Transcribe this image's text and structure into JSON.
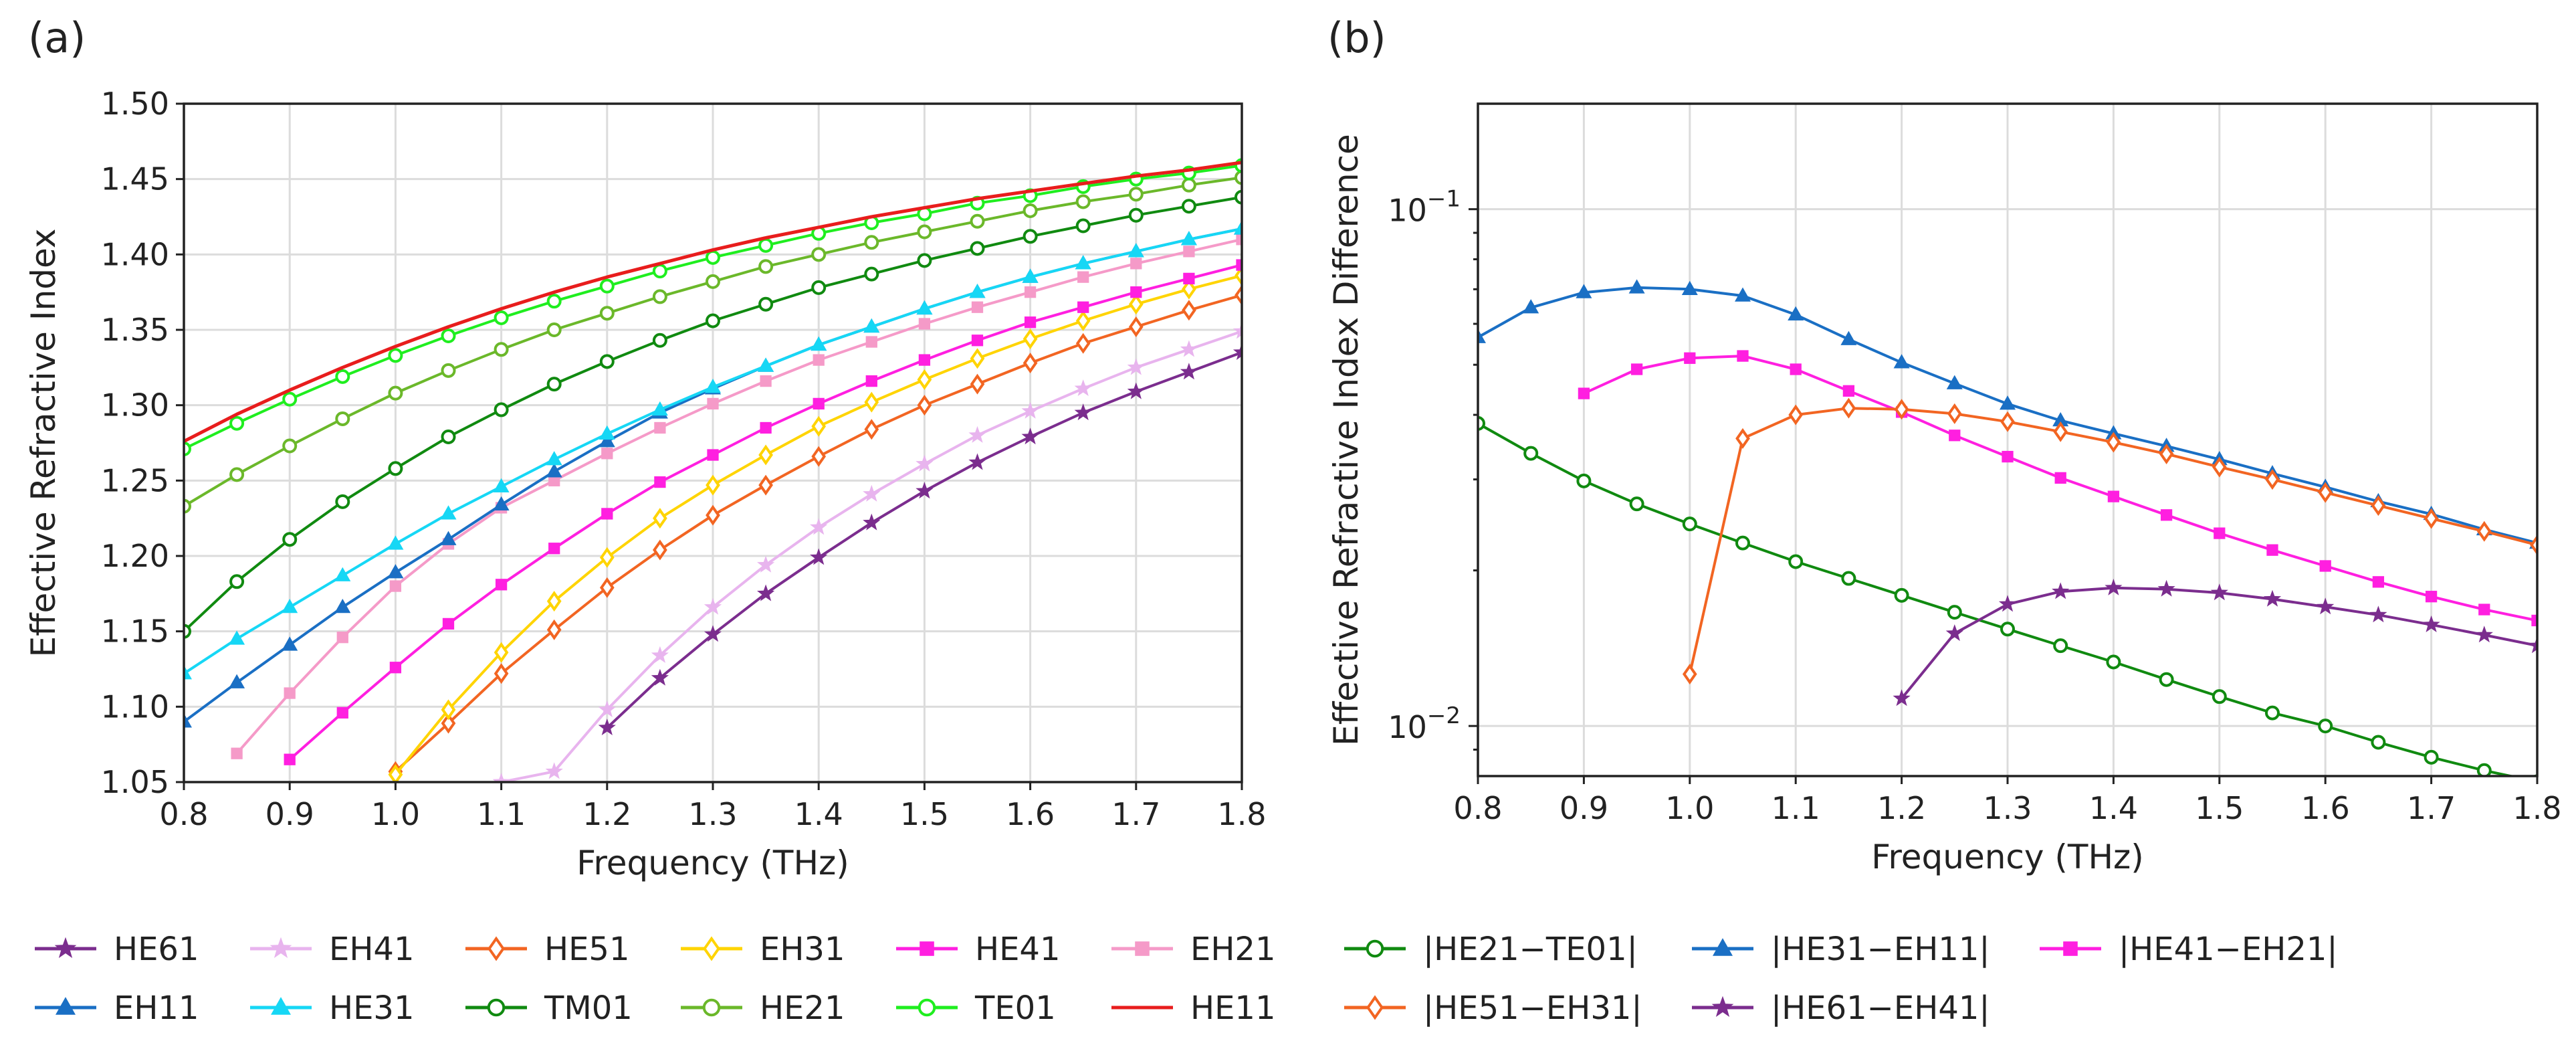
{
  "chart_data": [
    {
      "panel_label": "(a)",
      "type": "line",
      "xlabel": "Frequency (THz)",
      "ylabel": "Effective Refractive Index",
      "xlim": [
        0.8,
        1.8
      ],
      "ylim": [
        1.05,
        1.5
      ],
      "x_ticks": [
        "0.8",
        "0.9",
        "1.0",
        "1.1",
        "1.2",
        "1.3",
        "1.4",
        "1.5",
        "1.6",
        "1.7",
        "1.8"
      ],
      "y_ticks": [
        "1.05",
        "1.10",
        "1.15",
        "1.20",
        "1.25",
        "1.30",
        "1.35",
        "1.40",
        "1.45",
        "1.50"
      ],
      "grid": true,
      "series": [
        {
          "name": "HE61",
          "color": "#7b2d8e",
          "marker": "star",
          "x": [
            1.2,
            1.25,
            1.3,
            1.35,
            1.4,
            1.45,
            1.5,
            1.55,
            1.6,
            1.65,
            1.7,
            1.75,
            1.8
          ],
          "y": [
            1.086,
            1.119,
            1.148,
            1.175,
            1.199,
            1.222,
            1.243,
            1.262,
            1.279,
            1.295,
            1.309,
            1.322,
            1.335
          ]
        },
        {
          "name": "EH41",
          "color": "#e8b4ee",
          "marker": "star",
          "x": [
            1.1,
            1.15,
            1.2,
            1.25,
            1.3,
            1.35,
            1.4,
            1.45,
            1.5,
            1.55,
            1.6,
            1.65,
            1.7,
            1.75,
            1.8
          ],
          "y": [
            1.05,
            1.057,
            1.098,
            1.134,
            1.166,
            1.194,
            1.219,
            1.241,
            1.261,
            1.28,
            1.296,
            1.311,
            1.325,
            1.337,
            1.349
          ]
        },
        {
          "name": "HE51",
          "color": "#f26522",
          "marker": "diamond",
          "x": [
            1.0,
            1.05,
            1.1,
            1.15,
            1.2,
            1.25,
            1.3,
            1.35,
            1.4,
            1.45,
            1.5,
            1.55,
            1.6,
            1.65,
            1.7,
            1.75,
            1.8
          ],
          "y": [
            1.057,
            1.089,
            1.122,
            1.151,
            1.179,
            1.204,
            1.227,
            1.247,
            1.266,
            1.284,
            1.3,
            1.314,
            1.328,
            1.341,
            1.352,
            1.363,
            1.373
          ]
        },
        {
          "name": "EH31",
          "color": "#ffd400",
          "marker": "diamond",
          "x": [
            1.0,
            1.05,
            1.1,
            1.15,
            1.2,
            1.25,
            1.3,
            1.35,
            1.4,
            1.45,
            1.5,
            1.55,
            1.6,
            1.65,
            1.7,
            1.75,
            1.8
          ],
          "y": [
            1.055,
            1.098,
            1.136,
            1.17,
            1.199,
            1.225,
            1.247,
            1.267,
            1.286,
            1.302,
            1.317,
            1.331,
            1.344,
            1.356,
            1.367,
            1.377,
            1.386
          ]
        },
        {
          "name": "HE41",
          "color": "#ff1fe0",
          "marker": "square",
          "x": [
            0.9,
            0.95,
            1.0,
            1.05,
            1.1,
            1.15,
            1.2,
            1.25,
            1.3,
            1.35,
            1.4,
            1.45,
            1.5,
            1.55,
            1.6,
            1.65,
            1.7,
            1.75,
            1.8
          ],
          "y": [
            1.065,
            1.096,
            1.126,
            1.155,
            1.181,
            1.205,
            1.228,
            1.249,
            1.267,
            1.285,
            1.301,
            1.316,
            1.33,
            1.343,
            1.355,
            1.365,
            1.375,
            1.384,
            1.393
          ]
        },
        {
          "name": "EH21",
          "color": "#f59ac8",
          "marker": "square",
          "x": [
            0.85,
            0.9,
            0.95,
            1.0,
            1.05,
            1.1,
            1.15,
            1.2,
            1.25,
            1.3,
            1.35,
            1.4,
            1.45,
            1.5,
            1.55,
            1.6,
            1.65,
            1.7,
            1.75,
            1.8
          ],
          "y": [
            1.069,
            1.109,
            1.146,
            1.18,
            1.208,
            1.232,
            1.25,
            1.268,
            1.285,
            1.301,
            1.316,
            1.33,
            1.342,
            1.354,
            1.365,
            1.375,
            1.385,
            1.394,
            1.402,
            1.41
          ]
        },
        {
          "name": "EH11",
          "color": "#1a6fc4",
          "marker": "triangle",
          "x": [
            0.8,
            0.85,
            0.9,
            0.95,
            1.0,
            1.05,
            1.1,
            1.15,
            1.2,
            1.25,
            1.3,
            1.35,
            1.4,
            1.45,
            1.5,
            1.55,
            1.6,
            1.65,
            1.7,
            1.75,
            1.8
          ],
          "y": [
            1.09,
            1.116,
            1.141,
            1.166,
            1.189,
            1.211,
            1.234,
            1.256,
            1.276,
            1.295,
            1.311,
            1.326,
            1.34,
            1.352,
            1.364,
            1.375,
            1.385,
            1.394,
            1.402,
            1.41,
            1.417
          ]
        },
        {
          "name": "HE31",
          "color": "#16d7f5",
          "marker": "triangle",
          "x": [
            0.8,
            0.85,
            0.9,
            0.95,
            1.0,
            1.05,
            1.1,
            1.15,
            1.2,
            1.25,
            1.3,
            1.35,
            1.4,
            1.45,
            1.5,
            1.55,
            1.6,
            1.65,
            1.7,
            1.75,
            1.8
          ],
          "y": [
            1.122,
            1.145,
            1.166,
            1.187,
            1.208,
            1.228,
            1.246,
            1.264,
            1.281,
            1.297,
            1.312,
            1.326,
            1.34,
            1.352,
            1.364,
            1.375,
            1.385,
            1.394,
            1.402,
            1.41,
            1.417
          ]
        },
        {
          "name": "TM01",
          "color": "#108a10",
          "marker": "circle",
          "x": [
            0.8,
            0.85,
            0.9,
            0.95,
            1.0,
            1.05,
            1.1,
            1.15,
            1.2,
            1.25,
            1.3,
            1.35,
            1.4,
            1.45,
            1.5,
            1.55,
            1.6,
            1.65,
            1.7,
            1.75,
            1.8
          ],
          "y": [
            1.15,
            1.183,
            1.211,
            1.236,
            1.258,
            1.279,
            1.297,
            1.314,
            1.329,
            1.343,
            1.356,
            1.367,
            1.378,
            1.387,
            1.396,
            1.404,
            1.412,
            1.419,
            1.426,
            1.432,
            1.438
          ]
        },
        {
          "name": "HE21",
          "color": "#6bb82a",
          "marker": "circle",
          "x": [
            0.8,
            0.85,
            0.9,
            0.95,
            1.0,
            1.05,
            1.1,
            1.15,
            1.2,
            1.25,
            1.3,
            1.35,
            1.4,
            1.45,
            1.5,
            1.55,
            1.6,
            1.65,
            1.7,
            1.75,
            1.8
          ],
          "y": [
            1.233,
            1.254,
            1.273,
            1.291,
            1.308,
            1.323,
            1.337,
            1.35,
            1.361,
            1.372,
            1.382,
            1.392,
            1.4,
            1.408,
            1.415,
            1.422,
            1.429,
            1.435,
            1.44,
            1.446,
            1.451
          ]
        },
        {
          "name": "TE01",
          "color": "#1fee1f",
          "marker": "circle",
          "x": [
            0.8,
            0.85,
            0.9,
            0.95,
            1.0,
            1.05,
            1.1,
            1.15,
            1.2,
            1.25,
            1.3,
            1.35,
            1.4,
            1.45,
            1.5,
            1.55,
            1.6,
            1.65,
            1.7,
            1.75,
            1.8
          ],
          "y": [
            1.271,
            1.288,
            1.304,
            1.319,
            1.333,
            1.346,
            1.358,
            1.369,
            1.379,
            1.389,
            1.398,
            1.406,
            1.414,
            1.421,
            1.427,
            1.434,
            1.439,
            1.445,
            1.45,
            1.454,
            1.459
          ]
        },
        {
          "name": "HE11",
          "color": "#e81d1d",
          "marker": "none",
          "x": [
            0.8,
            0.85,
            0.9,
            0.95,
            1.0,
            1.05,
            1.1,
            1.15,
            1.2,
            1.25,
            1.3,
            1.35,
            1.4,
            1.45,
            1.5,
            1.55,
            1.6,
            1.65,
            1.7,
            1.75,
            1.8
          ],
          "y": [
            1.276,
            1.294,
            1.31,
            1.325,
            1.339,
            1.352,
            1.364,
            1.375,
            1.385,
            1.394,
            1.403,
            1.411,
            1.418,
            1.425,
            1.431,
            1.437,
            1.442,
            1.447,
            1.452,
            1.456,
            1.461
          ]
        }
      ]
    },
    {
      "panel_label": "(b)",
      "type": "line",
      "yscale": "log",
      "xlabel": "Frequency (THz)",
      "ylabel": "Effective Refractive Index Difference",
      "xlim": [
        0.8,
        1.8
      ],
      "ylim": [
        0.008,
        0.16
      ],
      "x_ticks": [
        "0.8",
        "0.9",
        "1.0",
        "1.1",
        "1.2",
        "1.3",
        "1.4",
        "1.5",
        "1.6",
        "1.7",
        "1.8"
      ],
      "y_ticks": [
        {
          "value": 0.1,
          "base": "10",
          "exp": "−1"
        },
        {
          "value": 0.01,
          "base": "10",
          "exp": "−2"
        }
      ],
      "grid": true,
      "series": [
        {
          "name": "|HE21−TE01|",
          "color": "#108a10",
          "marker": "circle",
          "x": [
            0.8,
            0.85,
            0.9,
            0.95,
            1.0,
            1.05,
            1.1,
            1.15,
            1.2,
            1.25,
            1.3,
            1.35,
            1.4,
            1.45,
            1.5,
            1.55,
            1.6,
            1.65,
            1.7,
            1.75,
            1.8
          ],
          "y": [
            0.0385,
            0.0337,
            0.0298,
            0.0269,
            0.0246,
            0.0226,
            0.0208,
            0.0193,
            0.0179,
            0.0166,
            0.0154,
            0.0143,
            0.0133,
            0.0123,
            0.0114,
            0.0106,
            0.01,
            0.0093,
            0.0087,
            0.0082,
            0.0078
          ]
        },
        {
          "name": "|HE31−EH11|",
          "color": "#1a6fc4",
          "marker": "triangle",
          "x": [
            0.8,
            0.85,
            0.9,
            0.95,
            1.0,
            1.05,
            1.1,
            1.15,
            1.2,
            1.25,
            1.3,
            1.35,
            1.4,
            1.45,
            1.5,
            1.55,
            1.6,
            1.65,
            1.7,
            1.75,
            1.8
          ],
          "y": [
            0.0565,
            0.0645,
            0.069,
            0.0705,
            0.07,
            0.068,
            0.0625,
            0.056,
            0.0505,
            0.046,
            0.042,
            0.039,
            0.0368,
            0.0348,
            0.0328,
            0.0308,
            0.029,
            0.0272,
            0.0257,
            0.024,
            0.0226
          ]
        },
        {
          "name": "|HE41−EH21|",
          "color": "#ff1fe0",
          "marker": "square",
          "x": [
            0.9,
            0.95,
            1.0,
            1.05,
            1.1,
            1.15,
            1.2,
            1.25,
            1.3,
            1.35,
            1.4,
            1.45,
            1.5,
            1.55,
            1.6,
            1.65,
            1.7,
            1.75,
            1.8
          ],
          "y": [
            0.044,
            0.049,
            0.0515,
            0.052,
            0.049,
            0.0445,
            0.0405,
            0.0365,
            0.0332,
            0.0302,
            0.0278,
            0.0256,
            0.0236,
            0.0219,
            0.0204,
            0.019,
            0.0178,
            0.0168,
            0.016
          ]
        },
        {
          "name": "|HE51−EH31|",
          "color": "#f26522",
          "marker": "diamond",
          "x": [
            1.0,
            1.05,
            1.1,
            1.15,
            1.2,
            1.25,
            1.3,
            1.35,
            1.4,
            1.45,
            1.5,
            1.55,
            1.6,
            1.65,
            1.7,
            1.75,
            1.8
          ],
          "y": [
            0.0126,
            0.036,
            0.04,
            0.0412,
            0.041,
            0.0402,
            0.0388,
            0.0371,
            0.0354,
            0.0336,
            0.0317,
            0.03,
            0.0283,
            0.0267,
            0.0252,
            0.0238,
            0.0224
          ]
        },
        {
          "name": "|HE61−EH41|",
          "color": "#7b2d8e",
          "marker": "star",
          "x": [
            1.2,
            1.25,
            1.3,
            1.35,
            1.4,
            1.45,
            1.5,
            1.55,
            1.6,
            1.65,
            1.7,
            1.75,
            1.8
          ],
          "y": [
            0.0113,
            0.0151,
            0.0172,
            0.0182,
            0.0185,
            0.0184,
            0.0181,
            0.0176,
            0.017,
            0.0164,
            0.0157,
            0.015,
            0.0143
          ]
        }
      ]
    }
  ],
  "legends": {
    "a_rows": [
      [
        "HE61",
        "EH41",
        "HE51",
        "EH31",
        "HE41",
        "EH21"
      ],
      [
        "EH11",
        "HE31",
        "TM01",
        "HE21",
        "TE01",
        "HE11"
      ]
    ],
    "b_rows": [
      [
        "|HE21−TE01|",
        "|HE31−EH11|",
        "|HE41−EH21|"
      ],
      [
        "|HE51−EH31|",
        "|HE61−EH41|"
      ]
    ]
  }
}
